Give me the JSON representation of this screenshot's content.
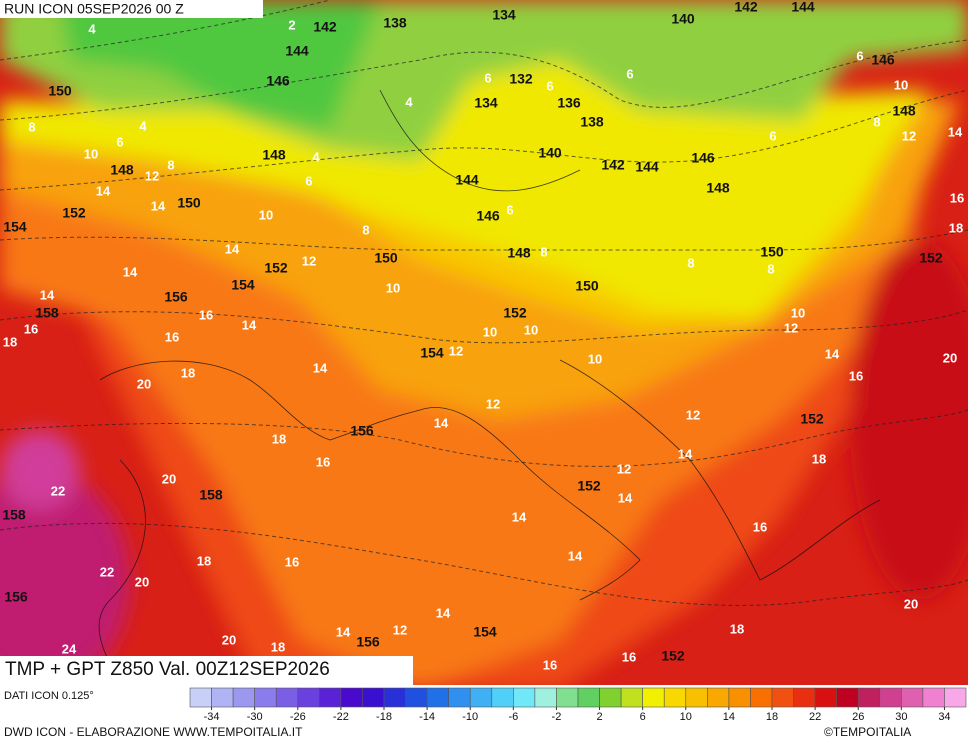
{
  "header": {
    "run": "RUN ICON 05SEP2026 00 Z"
  },
  "footer": {
    "title": "TMP + GPT Z850 Val. 00Z12SEP2026",
    "source": "DATI ICON 0.125°",
    "credit": "DWD ICON - ELABORAZIONE WWW.TEMPOITALIA.IT",
    "copyright": "©TEMPOITALIA"
  },
  "colorbar": {
    "range": [
      -36,
      36
    ],
    "colors": [
      "#c8d0f8",
      "#b0b4f4",
      "#9c98f0",
      "#8a7cec",
      "#7a5ee6",
      "#6a40de",
      "#5a22d6",
      "#4a0ace",
      "#3a10d0",
      "#2a30d8",
      "#2050e0",
      "#2070e8",
      "#3090f0",
      "#40b0f4",
      "#50d0f8",
      "#70e8f8",
      "#a0f0e0",
      "#80e090",
      "#60d060",
      "#80d030",
      "#c0e020",
      "#f0f000",
      "#f8d800",
      "#f8c000",
      "#f8a800",
      "#f89000",
      "#f87000",
      "#f05010",
      "#e83010",
      "#d81010",
      "#c00020",
      "#c02060",
      "#d04090",
      "#e060b0",
      "#f080d0",
      "#f8a8e8"
    ],
    "ticks": [
      -34,
      -30,
      -26,
      -22,
      -18,
      -14,
      -10,
      -6,
      -2,
      2,
      6,
      10,
      14,
      18,
      22,
      26,
      30,
      34
    ]
  },
  "map": {
    "geopotential_labels": [
      142,
      138,
      134,
      140,
      142,
      144,
      146,
      144,
      146,
      132,
      134,
      136,
      138,
      148,
      150,
      148,
      140,
      142,
      144,
      146,
      148,
      148,
      144,
      150,
      146,
      152,
      154,
      148,
      150,
      150,
      152,
      152,
      154,
      150,
      156,
      158,
      152,
      154,
      156,
      152,
      158,
      152,
      158,
      156,
      154,
      156,
      152
    ],
    "temperature_labels": [
      2,
      4,
      4,
      6,
      6,
      6,
      6,
      10,
      8,
      12,
      14,
      6,
      8,
      4,
      6,
      10,
      8,
      12,
      4,
      6,
      14,
      14,
      10,
      6,
      8,
      14,
      14,
      12,
      8,
      8,
      8,
      16,
      18,
      14,
      16,
      18,
      16,
      14,
      16,
      10,
      10,
      12,
      10,
      10,
      12,
      10,
      14,
      16,
      20,
      18,
      20,
      14,
      12,
      14,
      12,
      18,
      16,
      14,
      18,
      20,
      22,
      12,
      14,
      14,
      16,
      18,
      16,
      14,
      22,
      20,
      20,
      14,
      14,
      12,
      18,
      20,
      18,
      24,
      16,
      16
    ]
  }
}
